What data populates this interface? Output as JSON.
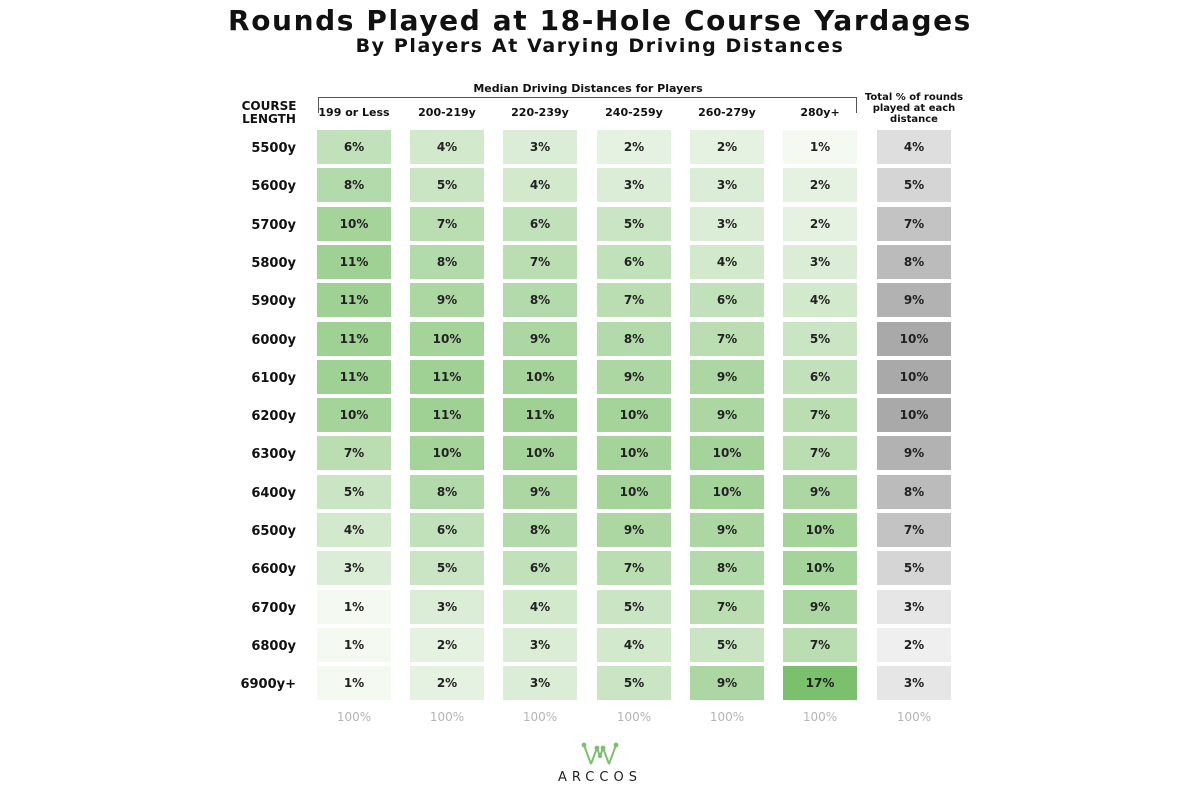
{
  "title": "Rounds Played at 18-Hole Course Yardages",
  "subtitle": "By Players At Varying Driving Distances",
  "group_label": "Median Driving Distances for Players",
  "row_header": "COURSE LENGTH",
  "total_header": "Total % of rounds played at each distance",
  "brand": "ARCCOS",
  "colors": {
    "green_light": "#f4f9f2",
    "green_dark": "#7bc06c",
    "gray_light": "#efefef",
    "gray_dark": "#a9a9a9",
    "footer_text": "#b5b5b5"
  },
  "chart_data": {
    "type": "heatmap",
    "title": "Rounds Played at 18-Hole Course Yardages",
    "subtitle": "By Players At Varying Driving Distances",
    "xlabel": "Median Driving Distances for Players",
    "ylabel": "COURSE LENGTH",
    "columns": [
      "199 or Less",
      "200-219y",
      "220-239y",
      "240-259y",
      "260-279y",
      "280y+"
    ],
    "rows": [
      "5500y",
      "5600y",
      "5700y",
      "5800y",
      "5900y",
      "6000y",
      "6100y",
      "6200y",
      "6300y",
      "6400y",
      "6500y",
      "6600y",
      "6700y",
      "6800y",
      "6900y+"
    ],
    "values": [
      [
        6,
        4,
        3,
        2,
        2,
        1
      ],
      [
        8,
        5,
        4,
        3,
        3,
        2
      ],
      [
        10,
        7,
        6,
        5,
        3,
        2
      ],
      [
        11,
        8,
        7,
        6,
        4,
        3
      ],
      [
        11,
        9,
        8,
        7,
        6,
        4
      ],
      [
        11,
        10,
        9,
        8,
        7,
        5
      ],
      [
        11,
        11,
        10,
        9,
        9,
        6
      ],
      [
        10,
        11,
        11,
        10,
        9,
        7
      ],
      [
        7,
        10,
        10,
        10,
        10,
        7
      ],
      [
        5,
        8,
        9,
        10,
        10,
        9
      ],
      [
        4,
        6,
        8,
        9,
        9,
        10
      ],
      [
        3,
        5,
        6,
        7,
        8,
        10
      ],
      [
        1,
        3,
        4,
        5,
        7,
        9
      ],
      [
        1,
        2,
        3,
        4,
        5,
        7
      ],
      [
        1,
        2,
        3,
        5,
        9,
        17
      ]
    ],
    "total_column": {
      "label": "Total % of rounds played at each distance",
      "values": [
        4,
        5,
        7,
        8,
        9,
        10,
        10,
        10,
        9,
        8,
        7,
        5,
        3,
        2,
        3
      ]
    },
    "column_totals": [
      "100%",
      "100%",
      "100%",
      "100%",
      "100%",
      "100%",
      "100%"
    ],
    "unit": "%"
  }
}
